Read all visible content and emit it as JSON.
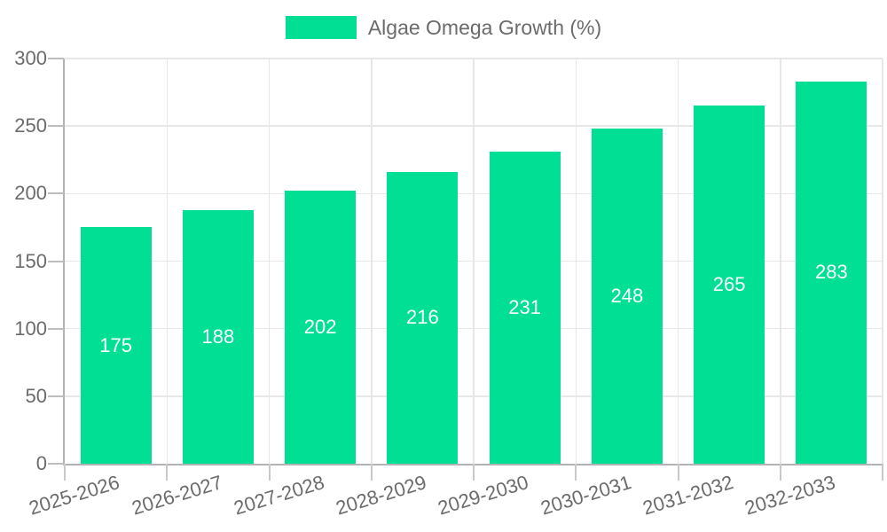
{
  "chart_data": {
    "type": "bar",
    "title": "",
    "categories": [
      "2025-2026",
      "2026-2027",
      "2027-2028",
      "2028-2029",
      "2029-2030",
      "2030-2031",
      "2031-2032",
      "2032-2033"
    ],
    "series": [
      {
        "name": "Algae Omega Growth (%)",
        "values": [
          175,
          188,
          202,
          216,
          231,
          248,
          265,
          283
        ]
      }
    ],
    "value_labels_shown": true,
    "xlabel": "",
    "ylabel": "",
    "ylim": [
      0,
      300
    ],
    "yticks": [
      0,
      50,
      100,
      150,
      200,
      250,
      300
    ],
    "grid": true,
    "legend_position": "top-center",
    "colors": {
      "bar": "#00DF94",
      "grid": "#E7E7E7",
      "axis_line": "#B3B3B3",
      "tick": "#C9C9C9",
      "axis_text": "#6B6B6B",
      "value_text": "#FFFFFF",
      "background": "#FFFFFF"
    }
  }
}
